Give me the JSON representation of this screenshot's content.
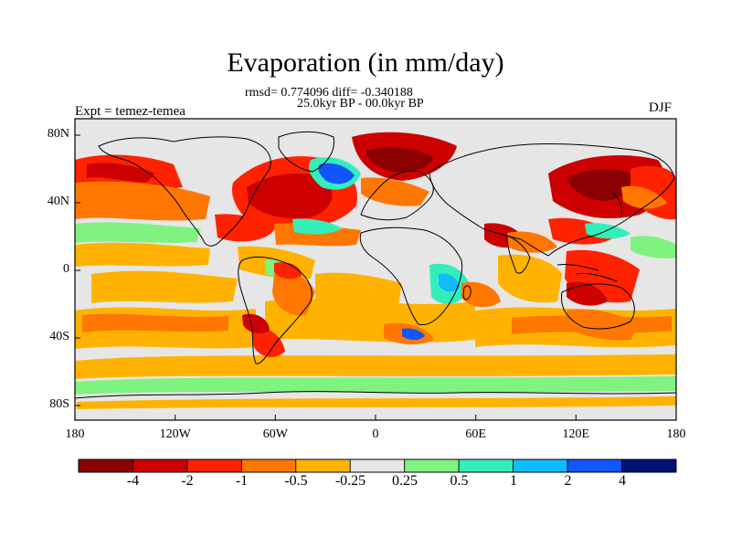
{
  "title": "Evaporation (in mm/day)",
  "stats_line": "rmsd= 0.774096 diff= -0.340188",
  "period_line": "25.0kyr BP - 00.0kyr BP",
  "expt_label": "Expt = temez-temea",
  "season_label": "DJF",
  "axes": {
    "lat_ticks": [
      "80N",
      "40N",
      "0",
      "40S",
      "80S"
    ],
    "lon_ticks": [
      "180",
      "120W",
      "60W",
      "0",
      "60E",
      "120E",
      "180"
    ]
  },
  "colorbar": {
    "labels": [
      "-4",
      "-2",
      "-1",
      "-0.5",
      "-0.25",
      "0.25",
      "0.5",
      "1",
      "2",
      "4"
    ],
    "colors": [
      "#8b0000",
      "#cc0000",
      "#ff2200",
      "#ff7700",
      "#ffb300",
      "#e6e6e6",
      "#7ff27f",
      "#33eebb",
      "#11bbff",
      "#1155ff",
      "#001177"
    ]
  },
  "colors": {
    "land_neutral": "#e6e6e6",
    "deep_red": "#8b0000",
    "red": "#cc0000",
    "orange_red": "#ff2200",
    "orange": "#ff7700",
    "amber": "#ffb300",
    "light_green": "#7ff27f",
    "teal": "#33eebb",
    "sky_blue": "#11bbff",
    "blue": "#1155ff",
    "navy": "#001177"
  }
}
